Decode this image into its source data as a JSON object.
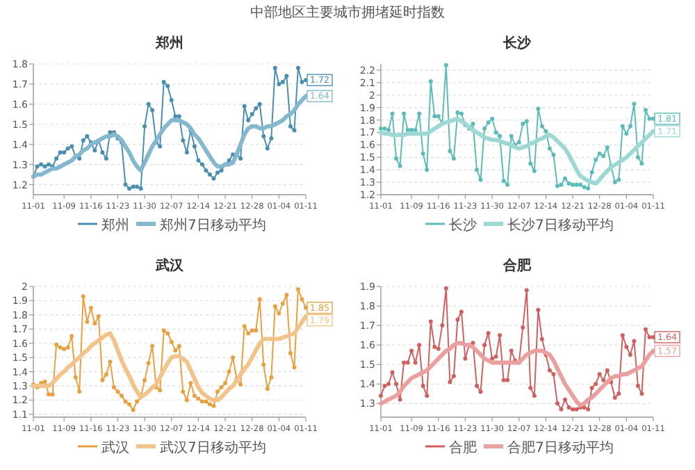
{
  "chart_data": [
    {
      "type": "line",
      "title": "郑州",
      "annotations": [
        "中部地区主要城市拥堵延时指数",
        {
          "text": "1.72",
          "x": "01-11",
          "y": 1.72
        },
        {
          "text": "1.64",
          "x": "01-11",
          "y": 1.64
        }
      ],
      "categories": [
        "11-01",
        null,
        null,
        null,
        null,
        null,
        null,
        null,
        "11-09",
        null,
        null,
        null,
        null,
        null,
        null,
        "11-16",
        null,
        null,
        null,
        null,
        null,
        null,
        "11-23",
        null,
        null,
        null,
        null,
        null,
        null,
        "11-30",
        null,
        null,
        null,
        null,
        null,
        null,
        "12-07",
        null,
        null,
        null,
        null,
        null,
        null,
        "12-14",
        null,
        null,
        null,
        null,
        null,
        null,
        "12-21",
        null,
        null,
        null,
        null,
        null,
        null,
        "12-28",
        null,
        null,
        null,
        null,
        null,
        null,
        "01-04",
        null,
        null,
        null,
        null,
        null,
        null,
        "01-11"
      ],
      "series": [
        {
          "name": "郑州",
          "color": "#4a8fb0",
          "marker": "circle",
          "values": [
            1.24,
            1.29,
            1.3,
            1.29,
            1.3,
            1.29,
            1.33,
            1.36,
            1.36,
            1.38,
            1.39,
            1.34,
            1.33,
            1.42,
            1.44,
            1.41,
            1.37,
            1.42,
            1.36,
            1.33,
            1.46,
            1.46,
            1.43,
            1.41,
            1.2,
            1.18,
            1.19,
            1.19,
            1.18,
            1.49,
            1.6,
            1.57,
            1.41,
            1.39,
            1.71,
            1.69,
            1.62,
            1.54,
            1.54,
            1.42,
            1.36,
            1.47,
            1.39,
            1.32,
            1.3,
            1.27,
            1.25,
            1.23,
            1.26,
            1.27,
            1.3,
            1.32,
            1.35,
            1.35,
            1.33,
            1.59,
            1.52,
            1.55,
            1.58,
            1.6,
            1.44,
            1.38,
            1.43,
            1.78,
            1.7,
            1.71,
            1.74,
            1.49,
            1.47,
            1.78,
            1.71,
            1.72
          ]
        },
        {
          "name": "郑州7日移动平均",
          "color": "#84b8cf",
          "marker": "none",
          "values": [
            1.24,
            1.25,
            1.25,
            1.26,
            1.27,
            1.28,
            1.28,
            1.29,
            1.3,
            1.31,
            1.32,
            1.34,
            1.35,
            1.37,
            1.38,
            1.4,
            1.41,
            1.42,
            1.43,
            1.44,
            1.44,
            1.45,
            1.44,
            1.42,
            1.39,
            1.36,
            1.32,
            1.29,
            1.27,
            1.31,
            1.35,
            1.39,
            1.42,
            1.45,
            1.48,
            1.5,
            1.52,
            1.52,
            1.52,
            1.51,
            1.5,
            1.48,
            1.45,
            1.43,
            1.4,
            1.37,
            1.34,
            1.31,
            1.29,
            1.29,
            1.3,
            1.3,
            1.31,
            1.35,
            1.4,
            1.45,
            1.48,
            1.49,
            1.49,
            1.48,
            1.48,
            1.49,
            1.49,
            1.5,
            1.51,
            1.52,
            1.54,
            1.55,
            1.57,
            1.6,
            1.62,
            1.64
          ]
        }
      ],
      "ylim": [
        1.15,
        1.8
      ],
      "yticks": [
        1.2,
        1.3,
        1.4,
        1.5,
        1.6,
        1.7,
        1.8
      ],
      "grid": "y",
      "legend": "bottom"
    },
    {
      "type": "line",
      "title": "长沙",
      "annotations": [
        {
          "text": "1.81",
          "x": "01-11",
          "y": 1.81
        },
        {
          "text": "1.71",
          "x": "01-11",
          "y": 1.71
        }
      ],
      "categories": [
        "11-01",
        null,
        null,
        null,
        null,
        null,
        null,
        null,
        "11-09",
        null,
        null,
        null,
        null,
        null,
        null,
        "11-16",
        null,
        null,
        null,
        null,
        null,
        null,
        "11-23",
        null,
        null,
        null,
        null,
        null,
        null,
        "11-30",
        null,
        null,
        null,
        null,
        null,
        null,
        "12-07",
        null,
        null,
        null,
        null,
        null,
        null,
        "12-14",
        null,
        null,
        null,
        null,
        null,
        null,
        "12-21",
        null,
        null,
        null,
        null,
        null,
        null,
        "12-28",
        null,
        null,
        null,
        null,
        null,
        null,
        "01-04",
        null,
        null,
        null,
        null,
        null,
        null,
        "01-11"
      ],
      "series": [
        {
          "name": "长沙",
          "color": "#5cbcb8",
          "marker": "circle",
          "values": [
            1.73,
            1.73,
            1.72,
            1.85,
            1.49,
            1.43,
            1.85,
            1.72,
            1.72,
            1.72,
            1.85,
            1.53,
            1.4,
            2.11,
            1.83,
            1.83,
            1.77,
            2.24,
            1.55,
            1.49,
            1.86,
            1.85,
            1.76,
            1.73,
            1.77,
            1.4,
            1.32,
            1.73,
            1.78,
            1.81,
            1.7,
            1.67,
            1.31,
            1.28,
            1.67,
            1.6,
            1.62,
            1.77,
            1.79,
            1.45,
            1.39,
            1.89,
            1.75,
            1.71,
            1.57,
            1.52,
            1.27,
            1.28,
            1.33,
            1.29,
            1.28,
            1.28,
            1.28,
            1.26,
            1.25,
            1.38,
            1.48,
            1.53,
            1.51,
            1.58,
            1.43,
            1.3,
            1.32,
            1.75,
            1.69,
            1.75,
            1.93,
            1.5,
            1.45,
            1.88,
            1.81,
            1.81
          ]
        },
        {
          "name": "长沙7日移动平均",
          "color": "#9dd8d4",
          "marker": "none",
          "values": [
            1.7,
            1.69,
            1.69,
            1.68,
            1.68,
            1.68,
            1.68,
            1.69,
            1.69,
            1.69,
            1.69,
            1.69,
            1.69,
            1.71,
            1.73,
            1.75,
            1.77,
            1.78,
            1.79,
            1.8,
            1.81,
            1.79,
            1.77,
            1.74,
            1.72,
            1.7,
            1.68,
            1.66,
            1.65,
            1.64,
            1.64,
            1.63,
            1.62,
            1.61,
            1.6,
            1.58,
            1.57,
            1.58,
            1.59,
            1.61,
            1.62,
            1.64,
            1.65,
            1.67,
            1.68,
            1.66,
            1.63,
            1.6,
            1.57,
            1.52,
            1.46,
            1.4,
            1.35,
            1.33,
            1.31,
            1.3,
            1.29,
            1.32,
            1.36,
            1.39,
            1.42,
            1.44,
            1.46,
            1.48,
            1.5,
            1.53,
            1.56,
            1.59,
            1.62,
            1.65,
            1.68,
            1.71
          ]
        }
      ],
      "ylim": [
        1.2,
        2.25
      ],
      "yticks": [
        1.2,
        1.3,
        1.4,
        1.5,
        1.6,
        1.7,
        1.8,
        1.9,
        2.0,
        2.1,
        2.2
      ],
      "grid": "y",
      "legend": "bottom"
    },
    {
      "type": "line",
      "title": "武汉",
      "annotations": [
        {
          "text": "1.85",
          "x": "01-11",
          "y": 1.85
        },
        {
          "text": "1.79",
          "x": "01-11",
          "y": 1.79
        }
      ],
      "categories": [
        "11-01",
        null,
        null,
        null,
        null,
        null,
        null,
        null,
        "11-09",
        null,
        null,
        null,
        null,
        null,
        null,
        "11-16",
        null,
        null,
        null,
        null,
        null,
        null,
        "11-23",
        null,
        null,
        null,
        null,
        null,
        null,
        "11-30",
        null,
        null,
        null,
        null,
        null,
        null,
        "12-07",
        null,
        null,
        null,
        null,
        null,
        null,
        "12-14",
        null,
        null,
        null,
        null,
        null,
        null,
        "12-21",
        null,
        null,
        null,
        null,
        null,
        null,
        "12-28",
        null,
        null,
        null,
        null,
        null,
        null,
        "01-04",
        null,
        null,
        null,
        null,
        null,
        null,
        "01-11"
      ],
      "series": [
        {
          "name": "武汉",
          "color": "#e8a040",
          "marker": "circle",
          "values": [
            1.31,
            1.29,
            1.32,
            1.33,
            1.24,
            1.24,
            1.59,
            1.57,
            1.56,
            1.57,
            1.65,
            1.36,
            1.26,
            1.93,
            1.75,
            1.85,
            1.74,
            1.79,
            1.34,
            1.38,
            1.47,
            1.29,
            1.26,
            1.23,
            1.19,
            1.17,
            1.13,
            1.19,
            1.22,
            1.34,
            1.46,
            1.58,
            1.29,
            1.27,
            1.69,
            1.67,
            1.61,
            1.55,
            1.58,
            1.26,
            1.2,
            1.32,
            1.23,
            1.21,
            1.19,
            1.19,
            1.17,
            1.16,
            1.26,
            1.29,
            1.32,
            1.4,
            1.5,
            1.35,
            1.31,
            1.72,
            1.67,
            1.69,
            1.69,
            1.91,
            1.45,
            1.28,
            1.36,
            1.86,
            1.81,
            1.88,
            1.94,
            1.53,
            1.43,
            1.98,
            1.91,
            1.85
          ]
        },
        {
          "name": "武汉7日移动平均",
          "color": "#f3c48a",
          "marker": "none",
          "values": [
            1.3,
            1.3,
            1.3,
            1.3,
            1.3,
            1.32,
            1.35,
            1.38,
            1.4,
            1.43,
            1.45,
            1.48,
            1.5,
            1.53,
            1.55,
            1.58,
            1.6,
            1.62,
            1.64,
            1.66,
            1.67,
            1.62,
            1.55,
            1.48,
            1.42,
            1.37,
            1.31,
            1.26,
            1.22,
            1.24,
            1.26,
            1.29,
            1.31,
            1.36,
            1.41,
            1.46,
            1.5,
            1.51,
            1.51,
            1.49,
            1.47,
            1.41,
            1.35,
            1.29,
            1.25,
            1.23,
            1.21,
            1.2,
            1.2,
            1.22,
            1.25,
            1.28,
            1.3,
            1.34,
            1.38,
            1.42,
            1.45,
            1.5,
            1.55,
            1.6,
            1.63,
            1.63,
            1.63,
            1.63,
            1.63,
            1.64,
            1.65,
            1.66,
            1.67,
            1.71,
            1.75,
            1.79
          ]
        }
      ],
      "ylim": [
        1.08,
        2.0
      ],
      "yticks": [
        1.1,
        1.2,
        1.3,
        1.4,
        1.5,
        1.6,
        1.7,
        1.8,
        1.9,
        2
      ],
      "grid": "y",
      "legend": "bottom"
    },
    {
      "type": "line",
      "title": "合肥",
      "annotations": [
        {
          "text": "1.64",
          "x": "01-11",
          "y": 1.64
        },
        {
          "text": "1.57",
          "x": "01-11",
          "y": 1.57
        }
      ],
      "categories": [
        "11-01",
        null,
        null,
        null,
        null,
        null,
        null,
        null,
        "11-09",
        null,
        null,
        null,
        null,
        null,
        null,
        "11-16",
        null,
        null,
        null,
        null,
        null,
        null,
        "11-23",
        null,
        null,
        null,
        null,
        null,
        null,
        "11-30",
        null,
        null,
        null,
        null,
        null,
        null,
        "12-07",
        null,
        null,
        null,
        null,
        null,
        null,
        "12-14",
        null,
        null,
        null,
        null,
        null,
        null,
        "12-21",
        null,
        null,
        null,
        null,
        null,
        null,
        "12-28",
        null,
        null,
        null,
        null,
        null,
        null,
        "01-04",
        null,
        null,
        null,
        null,
        null,
        null,
        "01-11"
      ],
      "series": [
        {
          "name": "合肥",
          "color": "#d06060",
          "marker": "circle",
          "values": [
            1.34,
            1.39,
            1.4,
            1.46,
            1.4,
            1.32,
            1.51,
            1.51,
            1.57,
            1.51,
            1.6,
            1.39,
            1.34,
            1.72,
            1.59,
            1.58,
            1.7,
            1.89,
            1.41,
            1.44,
            1.73,
            1.77,
            1.53,
            1.6,
            1.61,
            1.39,
            1.36,
            1.6,
            1.66,
            1.53,
            1.54,
            1.65,
            1.42,
            1.42,
            1.57,
            1.52,
            1.51,
            1.69,
            1.88,
            1.38,
            1.34,
            1.78,
            1.63,
            1.55,
            1.47,
            1.45,
            1.3,
            1.27,
            1.32,
            1.28,
            1.27,
            1.27,
            1.28,
            1.28,
            1.27,
            1.38,
            1.4,
            1.45,
            1.42,
            1.47,
            1.41,
            1.33,
            1.35,
            1.65,
            1.59,
            1.55,
            1.62,
            1.39,
            1.35,
            1.68,
            1.64,
            1.64
          ]
        },
        {
          "name": "合肥7日移动平均",
          "color": "#eba0a0",
          "marker": "none",
          "values": [
            1.3,
            1.31,
            1.32,
            1.33,
            1.34,
            1.36,
            1.39,
            1.41,
            1.43,
            1.44,
            1.45,
            1.46,
            1.47,
            1.49,
            1.51,
            1.53,
            1.55,
            1.57,
            1.58,
            1.6,
            1.61,
            1.61,
            1.6,
            1.6,
            1.59,
            1.57,
            1.55,
            1.53,
            1.52,
            1.51,
            1.51,
            1.51,
            1.51,
            1.51,
            1.51,
            1.51,
            1.51,
            1.53,
            1.55,
            1.56,
            1.57,
            1.57,
            1.57,
            1.56,
            1.55,
            1.52,
            1.48,
            1.44,
            1.4,
            1.37,
            1.34,
            1.31,
            1.29,
            1.3,
            1.32,
            1.33,
            1.35,
            1.37,
            1.39,
            1.41,
            1.43,
            1.44,
            1.44,
            1.45,
            1.45,
            1.46,
            1.47,
            1.48,
            1.49,
            1.52,
            1.55,
            1.57
          ]
        }
      ],
      "ylim": [
        1.23,
        1.9
      ],
      "yticks": [
        1.3,
        1.4,
        1.5,
        1.6,
        1.7,
        1.8,
        1.9
      ],
      "grid": "y",
      "legend": "bottom"
    }
  ]
}
